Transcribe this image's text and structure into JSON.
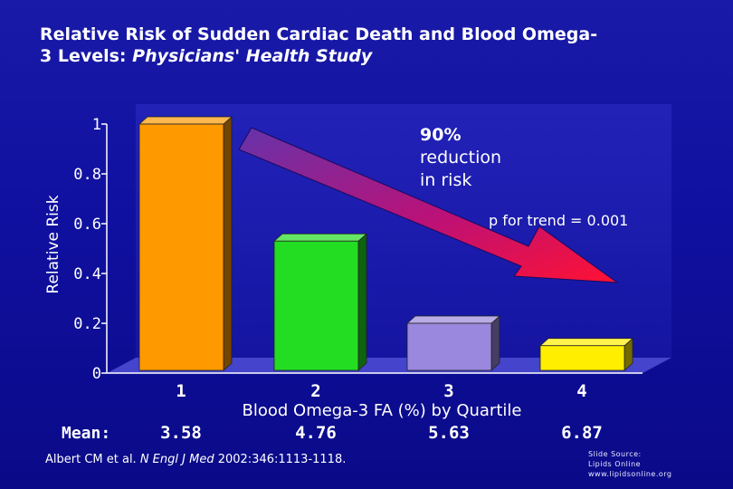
{
  "title": {
    "line1": "Relative Risk of Sudden Cardiac Death and Blood Omega-",
    "line2_plain": "3 Levels: ",
    "line2_italic": "Physicians' Health Study"
  },
  "chart_data": {
    "type": "bar",
    "title": "Relative Risk of Sudden Cardiac Death and Blood Omega-3 Levels: Physicians' Health Study",
    "xlabel": "Blood Omega-3 FA (%) by Quartile",
    "ylabel": "Relative Risk",
    "ylim": [
      0,
      1
    ],
    "yticks": [
      "1",
      "0.8",
      "0.6",
      "0.4",
      "0.2",
      "0"
    ],
    "ytick_values": [
      1,
      0.8,
      0.6,
      0.4,
      0.2,
      0
    ],
    "categories": [
      "1",
      "2",
      "3",
      "4"
    ],
    "values": [
      1.0,
      0.53,
      0.2,
      0.11
    ],
    "bar_colors": [
      "#ff9900",
      "#22dd22",
      "#9988dd",
      "#ffee00"
    ],
    "mean_label": "Mean:",
    "means": [
      "3.58",
      "4.76",
      "5.63",
      "6.87"
    ],
    "annotation": {
      "lines": [
        "90%",
        "reduction",
        "in risk"
      ]
    },
    "p_trend": "p for trend = 0.001",
    "grid": false
  },
  "citation": {
    "authors": "Albert CM et al. ",
    "journal": "N Engl J Med",
    "details": " 2002:346:1113-1118."
  },
  "source": {
    "line1": "Slide Source:",
    "line2": "Lipids Online",
    "line3": "www.lipidsonline.org"
  }
}
